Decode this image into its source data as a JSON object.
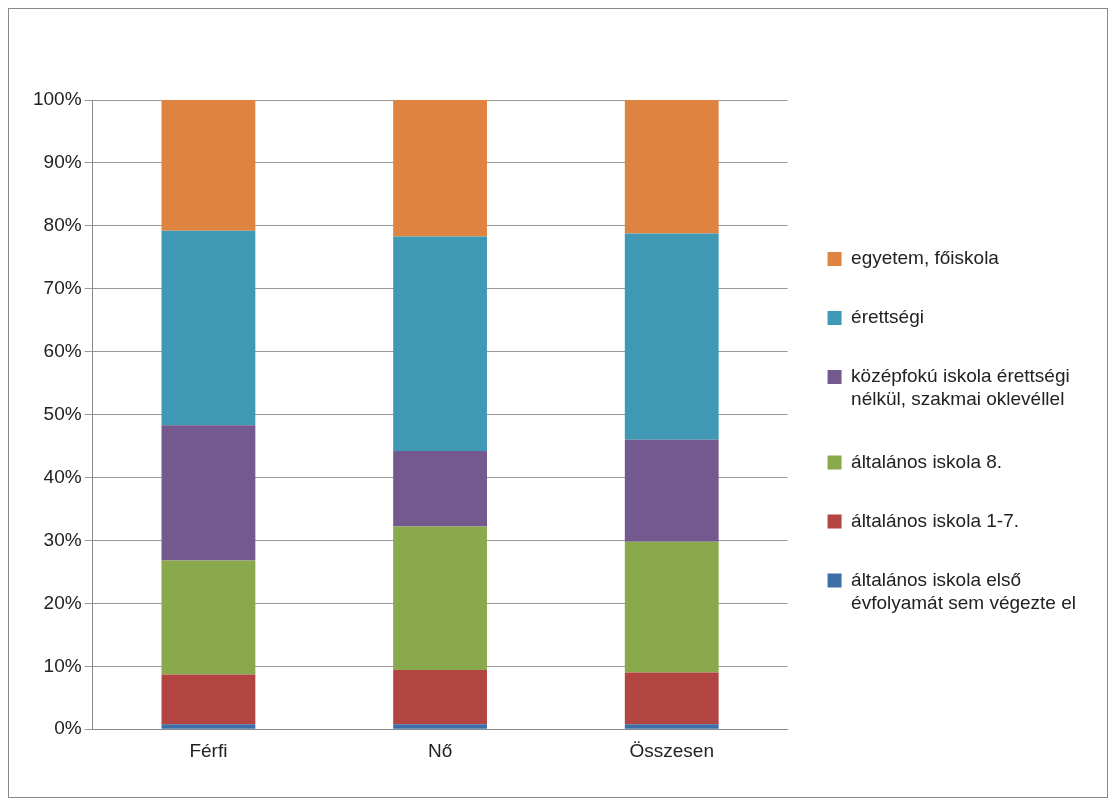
{
  "chart_data": {
    "type": "bar",
    "stacked": true,
    "categories": [
      "Férfi",
      "Nő",
      "Összesen"
    ],
    "series": [
      {
        "name": "általános iskola első évfolyamát sem végezte el",
        "color": "#3d6ea8",
        "values": [
          0.8,
          0.8,
          0.8
        ]
      },
      {
        "name": "általános iskola 1-7.",
        "color": "#b24542",
        "values": [
          7.9,
          8.6,
          8.2
        ]
      },
      {
        "name": "általános iskola 8.",
        "color": "#8aa84c",
        "values": [
          18.1,
          22.8,
          20.8
        ]
      },
      {
        "name": "középfokú iskola érettségi nélkül, szakmai oklevéllel",
        "color": "#74598f",
        "values": [
          21.5,
          12.0,
          16.2
        ]
      },
      {
        "name": "érettségi",
        "color": "#4099b4",
        "values": [
          30.9,
          34.1,
          32.8
        ]
      },
      {
        "name": "egyetem, főiskola",
        "color": "#df8340",
        "values": [
          20.8,
          21.7,
          21.2
        ]
      }
    ],
    "ylim": [
      0,
      100
    ],
    "yticks": [
      {
        "value": 0,
        "label": "0%"
      },
      {
        "value": 10,
        "label": "10%"
      },
      {
        "value": 20,
        "label": "20%"
      },
      {
        "value": 30,
        "label": "30%"
      },
      {
        "value": 40,
        "label": "40%"
      },
      {
        "value": 50,
        "label": "50%"
      },
      {
        "value": 60,
        "label": "60%"
      },
      {
        "value": 70,
        "label": "70%"
      },
      {
        "value": 80,
        "label": "80%"
      },
      {
        "value": 90,
        "label": "90%"
      },
      {
        "value": 100,
        "label": "100%"
      }
    ],
    "grid": "y",
    "legend": "right"
  }
}
